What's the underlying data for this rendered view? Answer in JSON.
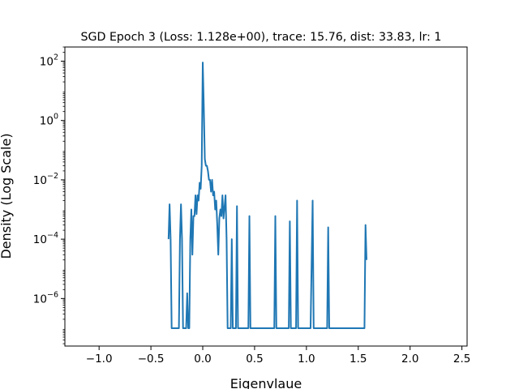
{
  "chart_data": {
    "type": "line",
    "title": "SGD Epoch 3 (Loss: 1.128e+00), trace: 15.76, dist: 33.83, lr: 1",
    "xlabel": "Eigenvlaue",
    "ylabel": "Density (Log Scale)",
    "xscale": "linear",
    "yscale": "log",
    "xlim": [
      -1.33,
      2.55
    ],
    "ylim": [
      2.5e-08,
      300
    ],
    "grid": false,
    "legend": "none",
    "x_ticks": [
      {
        "value": -1.0,
        "label": "−1.0"
      },
      {
        "value": -0.5,
        "label": "−0.5"
      },
      {
        "value": 0.0,
        "label": "0.0"
      },
      {
        "value": 0.5,
        "label": "0.5"
      },
      {
        "value": 1.0,
        "label": "1.0"
      },
      {
        "value": 1.5,
        "label": "1.5"
      },
      {
        "value": 2.0,
        "label": "2.0"
      },
      {
        "value": 2.5,
        "label": "2.5"
      }
    ],
    "y_ticks": [
      {
        "value": 1e-06,
        "base": "10",
        "exp": "−6"
      },
      {
        "value": 0.0001,
        "base": "10",
        "exp": "−4"
      },
      {
        "value": 0.01,
        "base": "10",
        "exp": "−2"
      },
      {
        "value": 1,
        "base": "10",
        "exp": "0"
      },
      {
        "value": 100,
        "base": "10",
        "exp": "2"
      }
    ],
    "series": [
      {
        "color": "#1f77b4",
        "x": [
          -0.33,
          -0.32,
          -0.31,
          -0.3,
          -0.29,
          -0.27,
          -0.25,
          -0.23,
          -0.22,
          -0.21,
          -0.2,
          -0.19,
          -0.18,
          -0.16,
          -0.15,
          -0.14,
          -0.13,
          -0.12,
          -0.11,
          -0.1,
          -0.09,
          -0.08,
          -0.07,
          -0.06,
          -0.05,
          -0.04,
          -0.03,
          -0.02,
          -0.01,
          0.0,
          0.01,
          0.02,
          0.03,
          0.04,
          0.05,
          0.06,
          0.07,
          0.08,
          0.09,
          0.1,
          0.11,
          0.12,
          0.13,
          0.14,
          0.15,
          0.16,
          0.17,
          0.18,
          0.19,
          0.2,
          0.21,
          0.22,
          0.23,
          0.24,
          0.25,
          0.26,
          0.27,
          0.28,
          0.29,
          0.3,
          0.31,
          0.32,
          0.33,
          0.34,
          0.35,
          0.36,
          0.37,
          0.38,
          0.4,
          0.42,
          0.44,
          0.45,
          0.46,
          0.48,
          0.5,
          0.55,
          0.6,
          0.65,
          0.67,
          0.69,
          0.7,
          0.71,
          0.73,
          0.75,
          0.8,
          0.83,
          0.84,
          0.85,
          0.86,
          0.88,
          0.9,
          0.91,
          0.92,
          0.93,
          0.95,
          1.0,
          1.02,
          1.04,
          1.06,
          1.07,
          1.08,
          1.1,
          1.15,
          1.18,
          1.2,
          1.21,
          1.22,
          1.24,
          1.3,
          1.4,
          1.5,
          1.55,
          1.56,
          1.57,
          1.58
        ],
        "y": [
          0.0001,
          0.0015,
          0.0001,
          1e-07,
          1e-07,
          1e-07,
          1e-07,
          1e-07,
          0.0001,
          0.0015,
          0.0001,
          1e-07,
          1e-07,
          1e-07,
          1.5e-06,
          1e-07,
          1e-07,
          0.0001,
          0.001,
          3e-05,
          0.0006,
          0.0006,
          0.003,
          0.0007,
          0.003,
          0.002,
          0.008,
          0.005,
          0.03,
          90,
          3,
          0.05,
          0.03,
          0.03,
          0.02,
          0.01,
          0.01,
          0.004,
          0.01,
          0.003,
          0.004,
          0.001,
          0.002,
          0.0003,
          3e-05,
          0.0005,
          0.001,
          0.0006,
          0.003,
          0.0005,
          0.0012,
          0.003,
          0.0001,
          1e-07,
          1e-07,
          1e-07,
          1e-07,
          0.0001,
          1e-07,
          1e-07,
          1e-07,
          1e-07,
          0.0013,
          1e-07,
          1e-07,
          1e-07,
          1e-07,
          1e-07,
          1e-07,
          1e-07,
          1e-07,
          0.0006,
          1e-07,
          1e-07,
          1e-07,
          1e-07,
          1e-07,
          1e-07,
          1e-07,
          1e-07,
          0.0006,
          1e-07,
          1e-07,
          1e-07,
          1e-07,
          1e-07,
          0.0004,
          1e-07,
          1e-07,
          1e-07,
          1e-07,
          0.002,
          1e-07,
          1e-07,
          1e-07,
          1e-07,
          1e-07,
          1e-07,
          0.002,
          1e-07,
          1e-07,
          1e-07,
          1e-07,
          1e-07,
          1e-07,
          0.00025,
          1e-07,
          1e-07,
          1e-07,
          1e-07,
          1e-07,
          1e-07,
          1e-07,
          0.0003,
          2e-05
        ]
      }
    ]
  }
}
